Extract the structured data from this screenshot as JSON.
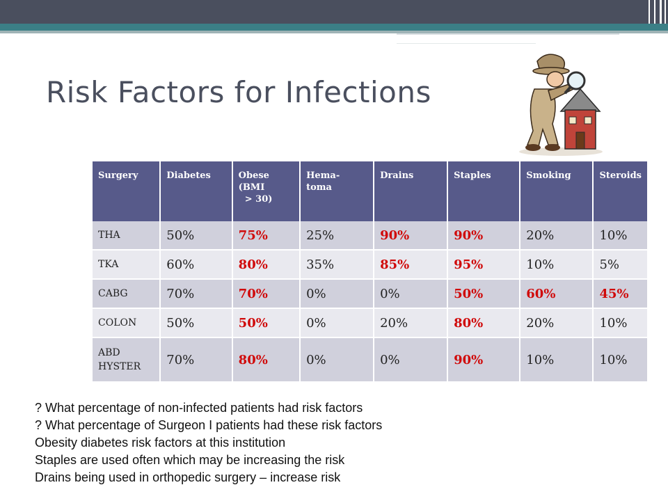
{
  "slide": {
    "title": "Risk Factors for Infections"
  },
  "colors": {
    "header_bg": "#575a8a",
    "highlight": "#d00a0a",
    "row_odd": "#d0d0dc",
    "row_even": "#e9e9ef",
    "top_bar": "#4a4f5e",
    "teal_bar": "#3b7f86"
  },
  "clipart": {
    "icon": "detective-magnifier-house-icon"
  },
  "table": {
    "headers": [
      "Surgery",
      "Diabetes",
      "Obese (BMI > 30)",
      "Hema- toma",
      "Drains",
      "Staples",
      "Smoking",
      "Steroids"
    ],
    "header_lines": {
      "obese_1": "Obese",
      "obese_2": "(BMI",
      "obese_3": "> 30)",
      "hema_1": "Hema-",
      "hema_2": "toma"
    },
    "rows": [
      {
        "surgery": "THA",
        "diabetes": "50%",
        "obese": "75%",
        "hematoma": "25%",
        "drains": "90%",
        "staples": "90%",
        "smoking": "20%",
        "steroids": "10%"
      },
      {
        "surgery": "TKA",
        "diabetes": "60%",
        "obese": "80%",
        "hematoma": "35%",
        "drains": "85%",
        "staples": "95%",
        "smoking": "10%",
        "steroids": "5%"
      },
      {
        "surgery": "CABG",
        "diabetes": "70%",
        "obese": "70%",
        "hematoma": "0%",
        "drains": "0%",
        "staples": "50%",
        "smoking": "60%",
        "steroids": "45%"
      },
      {
        "surgery": "COLON",
        "diabetes": "50%",
        "obese": "50%",
        "hematoma": "0%",
        "drains": "20%",
        "staples": "80%",
        "smoking": "20%",
        "steroids": "10%"
      },
      {
        "surgery_1": "ABD",
        "surgery_2": "HYSTER",
        "diabetes": "70%",
        "obese": "80%",
        "hematoma": "0%",
        "drains": "0%",
        "staples": "90%",
        "smoking": "10%",
        "steroids": "10%"
      }
    ]
  },
  "notes": [
    "? What percentage of non-infected patients had risk factors",
    "? What percentage of Surgeon I patients had these risk factors",
    "Obesity diabetes risk factors at this institution",
    "Staples are used  often which may be increasing the risk",
    "Drains being used in orthopedic surgery – increase risk"
  ]
}
